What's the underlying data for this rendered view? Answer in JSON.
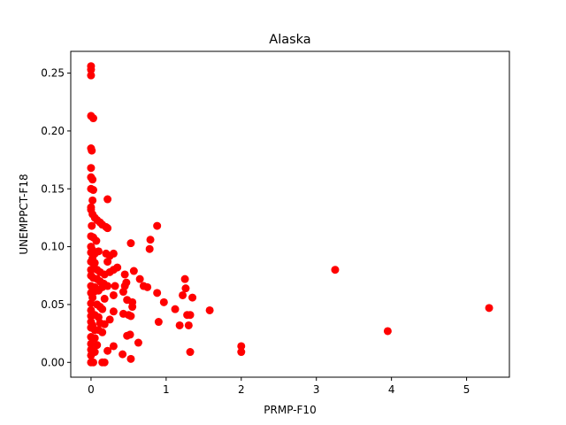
{
  "chart_data": {
    "type": "scatter",
    "title": "Alaska",
    "xlabel": "PRMP-F10",
    "ylabel": "UNEMPPCT-F18",
    "xlim": [
      -0.27,
      5.57
    ],
    "ylim": [
      -0.0128,
      0.2688
    ],
    "xticks": [
      0,
      1,
      2,
      3,
      4,
      5
    ],
    "yticks": [
      0.0,
      0.05,
      0.1,
      0.15,
      0.2,
      0.25
    ],
    "xtick_labels": [
      "0",
      "1",
      "2",
      "3",
      "4",
      "5"
    ],
    "ytick_labels": [
      "0.00",
      "0.05",
      "0.10",
      "0.15",
      "0.20",
      "0.25"
    ],
    "grid": false,
    "marker_color": "#ff0000",
    "series": [
      {
        "points": [
          [
            0.0,
            0.256
          ],
          [
            0.0,
            0.253
          ],
          [
            0.0,
            0.248
          ],
          [
            0.0,
            0.213
          ],
          [
            0.03,
            0.211
          ],
          [
            0.0,
            0.185
          ],
          [
            0.01,
            0.183
          ],
          [
            0.0,
            0.168
          ],
          [
            0.0,
            0.16
          ],
          [
            0.02,
            0.158
          ],
          [
            0.0,
            0.15
          ],
          [
            0.03,
            0.149
          ],
          [
            0.22,
            0.141
          ],
          [
            0.02,
            0.14
          ],
          [
            0.0,
            0.134
          ],
          [
            0.0,
            0.132
          ],
          [
            0.02,
            0.128
          ],
          [
            0.05,
            0.125
          ],
          [
            0.08,
            0.123
          ],
          [
            0.12,
            0.121
          ],
          [
            0.15,
            0.119
          ],
          [
            0.2,
            0.117
          ],
          [
            0.22,
            0.116
          ],
          [
            0.01,
            0.118
          ],
          [
            0.88,
            0.118
          ],
          [
            0.0,
            0.109
          ],
          [
            0.03,
            0.108
          ],
          [
            0.07,
            0.105
          ],
          [
            0.53,
            0.103
          ],
          [
            0.79,
            0.106
          ],
          [
            0.0,
            0.1
          ],
          [
            0.02,
            0.097
          ],
          [
            0.0,
            0.095
          ],
          [
            0.05,
            0.094
          ],
          [
            0.1,
            0.096
          ],
          [
            0.2,
            0.094
          ],
          [
            0.25,
            0.092
          ],
          [
            0.3,
            0.094
          ],
          [
            0.78,
            0.098
          ],
          [
            0.02,
            0.09
          ],
          [
            0.0,
            0.087
          ],
          [
            0.05,
            0.086
          ],
          [
            0.22,
            0.087
          ],
          [
            0.35,
            0.082
          ],
          [
            0.0,
            0.08
          ],
          [
            0.04,
            0.082
          ],
          [
            0.08,
            0.08
          ],
          [
            0.12,
            0.078
          ],
          [
            0.18,
            0.076
          ],
          [
            0.25,
            0.078
          ],
          [
            0.3,
            0.08
          ],
          [
            0.45,
            0.076
          ],
          [
            0.57,
            0.079
          ],
          [
            3.25,
            0.08
          ],
          [
            0.0,
            0.075
          ],
          [
            0.03,
            0.073
          ],
          [
            0.08,
            0.072
          ],
          [
            0.12,
            0.07
          ],
          [
            0.17,
            0.068
          ],
          [
            0.0,
            0.066
          ],
          [
            0.05,
            0.065
          ],
          [
            0.15,
            0.065
          ],
          [
            0.22,
            0.066
          ],
          [
            0.32,
            0.066
          ],
          [
            0.45,
            0.066
          ],
          [
            0.47,
            0.069
          ],
          [
            0.65,
            0.072
          ],
          [
            0.7,
            0.066
          ],
          [
            0.75,
            0.065
          ],
          [
            1.25,
            0.072
          ],
          [
            1.26,
            0.064
          ],
          [
            0.0,
            0.06
          ],
          [
            0.04,
            0.061
          ],
          [
            0.1,
            0.062
          ],
          [
            0.3,
            0.058
          ],
          [
            0.43,
            0.061
          ],
          [
            0.88,
            0.06
          ],
          [
            1.22,
            0.058
          ],
          [
            1.35,
            0.056
          ],
          [
            0.02,
            0.056
          ],
          [
            0.18,
            0.055
          ],
          [
            0.48,
            0.054
          ],
          [
            0.55,
            0.052
          ],
          [
            0.0,
            0.051
          ],
          [
            0.08,
            0.05
          ],
          [
            0.12,
            0.048
          ],
          [
            0.55,
            0.048
          ],
          [
            0.97,
            0.052
          ],
          [
            0.0,
            0.045
          ],
          [
            0.15,
            0.046
          ],
          [
            0.3,
            0.044
          ],
          [
            0.43,
            0.042
          ],
          [
            0.5,
            0.041
          ],
          [
            1.12,
            0.046
          ],
          [
            1.58,
            0.045
          ],
          [
            0.0,
            0.04
          ],
          [
            0.05,
            0.041
          ],
          [
            0.1,
            0.039
          ],
          [
            0.25,
            0.037
          ],
          [
            0.53,
            0.04
          ],
          [
            1.28,
            0.041
          ],
          [
            1.32,
            0.041
          ],
          [
            0.0,
            0.035
          ],
          [
            0.02,
            0.032
          ],
          [
            0.12,
            0.034
          ],
          [
            0.18,
            0.033
          ],
          [
            0.9,
            0.035
          ],
          [
            1.18,
            0.032
          ],
          [
            1.3,
            0.032
          ],
          [
            0.0,
            0.03
          ],
          [
            0.05,
            0.028
          ],
          [
            0.1,
            0.028
          ],
          [
            0.15,
            0.026
          ],
          [
            3.95,
            0.027
          ],
          [
            0.52,
            0.024
          ],
          [
            0.48,
            0.023
          ],
          [
            0.0,
            0.022
          ],
          [
            0.05,
            0.021
          ],
          [
            0.63,
            0.017
          ],
          [
            0.0,
            0.016
          ],
          [
            0.08,
            0.015
          ],
          [
            0.3,
            0.014
          ],
          [
            2.0,
            0.014
          ],
          [
            0.0,
            0.011
          ],
          [
            0.05,
            0.009
          ],
          [
            0.22,
            0.01
          ],
          [
            0.42,
            0.007
          ],
          [
            1.32,
            0.009
          ],
          [
            2.0,
            0.009
          ],
          [
            0.0,
            0.006
          ],
          [
            0.53,
            0.003
          ],
          [
            0.0,
            0.0
          ],
          [
            0.03,
            0.0
          ],
          [
            0.15,
            0.0
          ],
          [
            0.18,
            0.0
          ],
          [
            5.3,
            0.047
          ]
        ]
      }
    ]
  }
}
